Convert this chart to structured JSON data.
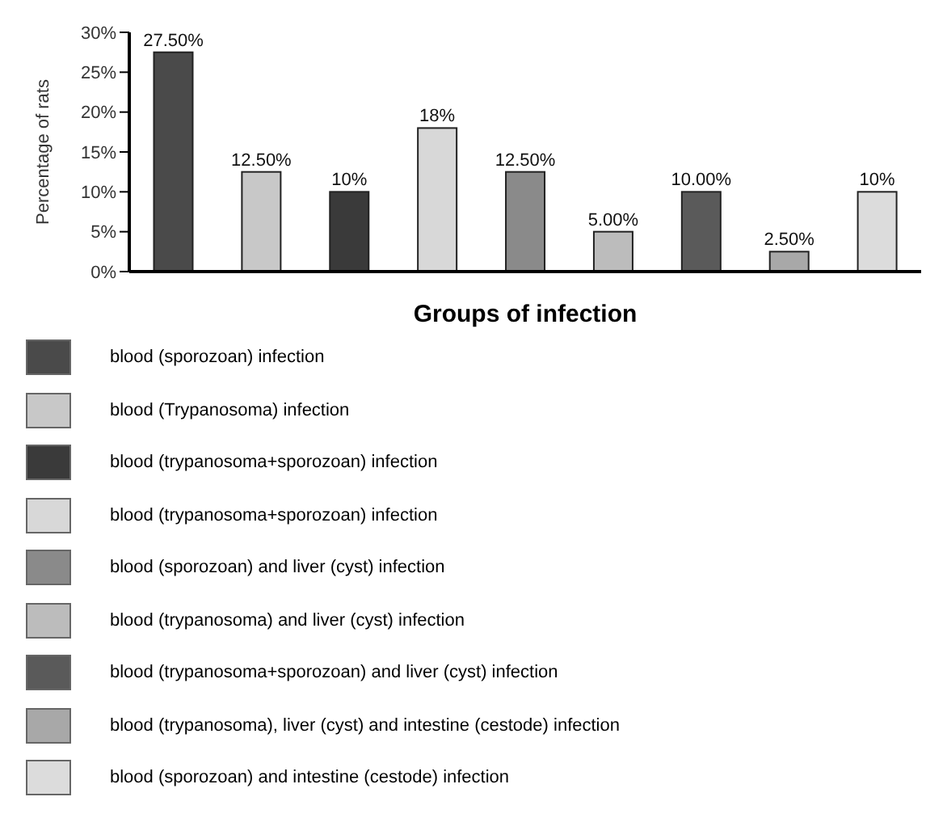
{
  "chart_data": {
    "type": "bar",
    "xlabel": "Groups of infection",
    "ylabel": "Percentage of rats",
    "stacked": true,
    "legend": "bottom",
    "categories": [
      null,
      null,
      null,
      null,
      null,
      null,
      null,
      null,
      null
    ],
    "ylim": [
      0,
      30
    ],
    "yticks": [
      {
        "value": 0,
        "label": "0%"
      },
      {
        "value": 5,
        "label": "5%"
      },
      {
        "value": 10,
        "label": "10%"
      },
      {
        "value": 15,
        "label": "15%"
      },
      {
        "value": 20,
        "label": "20%"
      },
      {
        "value": 25,
        "label": "25%"
      },
      {
        "value": 30,
        "label": "30%"
      }
    ],
    "series": [
      {
        "name": "blood (sporozoan) infection",
        "color": "#4a4a4a",
        "values": [
          27.5,
          null,
          null,
          null,
          null,
          null,
          null,
          null,
          null
        ],
        "value_labels": [
          "27.50%",
          null,
          null,
          null,
          null,
          null,
          null,
          null,
          null
        ]
      },
      {
        "name": "blood (Trypanosoma) infection",
        "color": "#c8c8c8",
        "values": [
          null,
          12.5,
          null,
          null,
          null,
          null,
          null,
          null,
          null
        ],
        "value_labels": [
          null,
          "12.50%",
          null,
          null,
          null,
          null,
          null,
          null,
          null
        ]
      },
      {
        "name": "blood (trypanosoma+sporozoan) infection",
        "color": "#3a3a3a",
        "values": [
          null,
          null,
          10,
          null,
          null,
          null,
          null,
          null,
          null
        ],
        "value_labels": [
          null,
          null,
          "10%",
          null,
          null,
          null,
          null,
          null,
          null
        ]
      },
      {
        "name": "blood (trypanosoma+sporozoan) infection",
        "color": "#d8d8d8",
        "values": [
          null,
          null,
          null,
          18,
          null,
          null,
          null,
          null,
          null
        ],
        "value_labels": [
          null,
          null,
          null,
          "18%",
          null,
          null,
          null,
          null,
          null
        ]
      },
      {
        "name": "blood (sporozoan) and liver (cyst) infection",
        "color": "#8a8a8a",
        "values": [
          null,
          null,
          null,
          null,
          12.5,
          null,
          null,
          null,
          null
        ],
        "value_labels": [
          null,
          null,
          null,
          null,
          "12.50%",
          null,
          null,
          null,
          null
        ]
      },
      {
        "name": "blood (trypanosoma) and liver (cyst) infection",
        "color": "#bcbcbc",
        "values": [
          null,
          null,
          null,
          null,
          null,
          5,
          null,
          null,
          null
        ],
        "value_labels": [
          null,
          null,
          null,
          null,
          null,
          "5.00%",
          null,
          null,
          null
        ]
      },
      {
        "name": "blood (trypanosoma+sporozoan) and liver (cyst) infection",
        "color": "#5a5a5a",
        "values": [
          null,
          null,
          null,
          null,
          null,
          null,
          10,
          null,
          null
        ],
        "value_labels": [
          null,
          null,
          null,
          null,
          null,
          null,
          "10.00%",
          null,
          null
        ]
      },
      {
        "name": "blood (trypanosoma), liver (cyst) and intestine (cestode) infection",
        "color": "#a8a8a8",
        "values": [
          null,
          null,
          null,
          null,
          null,
          null,
          null,
          2.5,
          null
        ],
        "value_labels": [
          null,
          null,
          null,
          null,
          null,
          null,
          null,
          "2.50%",
          null
        ]
      },
      {
        "name": "blood (sporozoan) and intestine (cestode) infection",
        "color": "#dcdcdc",
        "values": [
          null,
          null,
          null,
          null,
          null,
          null,
          null,
          null,
          10
        ],
        "value_labels": [
          null,
          null,
          null,
          null,
          null,
          null,
          null,
          null,
          "10%"
        ]
      }
    ]
  }
}
